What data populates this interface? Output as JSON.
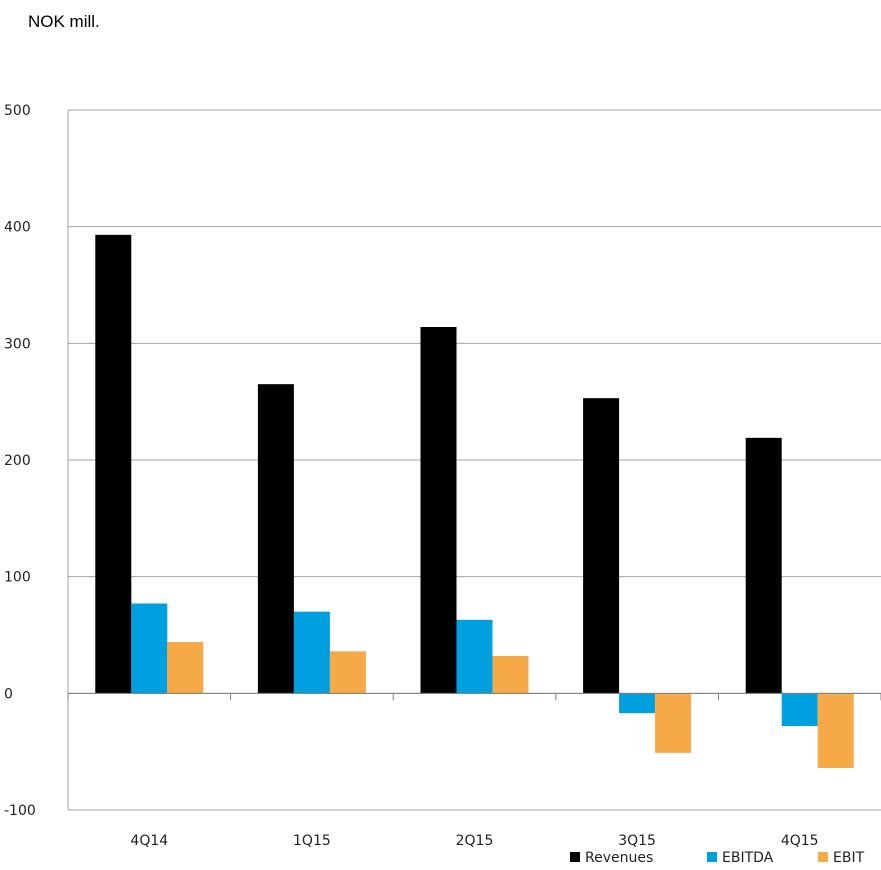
{
  "unit_label": "NOK mill.",
  "chart_data": {
    "type": "bar",
    "title": "",
    "xlabel": "",
    "ylabel": "",
    "categories": [
      "4Q14",
      "1Q15",
      "2Q15",
      "3Q15",
      "4Q15"
    ],
    "series": [
      {
        "name": "Revenues",
        "color": "#000000",
        "values": [
          393,
          265,
          314,
          253,
          219
        ]
      },
      {
        "name": "EBITDA",
        "color": "#009FDF",
        "values": [
          77,
          70,
          63,
          -17,
          -28
        ]
      },
      {
        "name": "EBIT",
        "color": "#F5A947",
        "values": [
          44,
          36,
          32,
          -51,
          -64
        ]
      }
    ],
    "ylim": [
      -100,
      500
    ],
    "yticks": [
      -100,
      0,
      100,
      200,
      300,
      400,
      500
    ],
    "grid": true,
    "legend_position": "bottom-right"
  }
}
